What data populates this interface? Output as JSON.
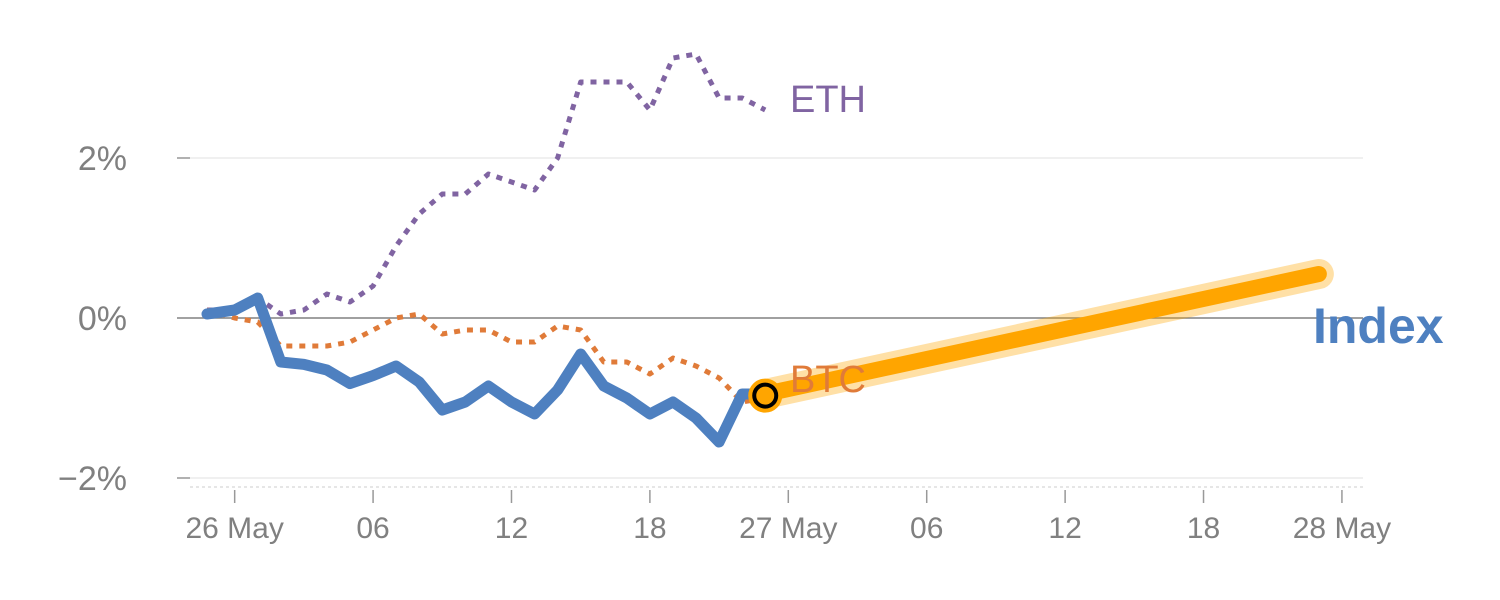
{
  "chart_data": {
    "type": "line",
    "y_unit": "%",
    "ylim": [
      -2.1,
      3.5
    ],
    "y_ticks": [
      {
        "value": -2,
        "label": "−2%"
      },
      {
        "value": 0,
        "label": "0%"
      },
      {
        "value": 2,
        "label": "2%"
      }
    ],
    "x_ticks": [
      {
        "hour": 0,
        "label": "26 May"
      },
      {
        "hour": 6,
        "label": "06"
      },
      {
        "hour": 12,
        "label": "12"
      },
      {
        "hour": 18,
        "label": "18"
      },
      {
        "hour": 24,
        "label": "27 May"
      },
      {
        "hour": 30,
        "label": "06"
      },
      {
        "hour": 36,
        "label": "12"
      },
      {
        "hour": 42,
        "label": "18"
      },
      {
        "hour": 48,
        "label": "28 May"
      }
    ],
    "xlim": [
      -2.5,
      49
    ],
    "grid": "horizontal",
    "series": [
      {
        "name": "ETH",
        "style": "dotted",
        "color": "#8064a2",
        "x": [
          -1.2,
          0,
          1,
          2,
          3,
          4,
          5,
          6,
          7,
          8,
          9,
          10,
          11,
          12,
          13,
          14,
          15,
          16,
          17,
          18,
          19,
          20,
          21,
          22,
          23
        ],
        "y": [
          0.1,
          0.1,
          0.25,
          0.05,
          0.1,
          0.3,
          0.2,
          0.4,
          0.9,
          1.3,
          1.55,
          1.55,
          1.8,
          1.7,
          1.6,
          2.0,
          2.95,
          2.95,
          2.95,
          2.6,
          3.25,
          3.3,
          2.75,
          2.75,
          2.6
        ]
      },
      {
        "name": "BTC",
        "style": "dotted",
        "color": "#e07b39",
        "x": [
          -1.2,
          0,
          1,
          2,
          3,
          4,
          5,
          6,
          7,
          8,
          9,
          10,
          11,
          12,
          13,
          14,
          15,
          16,
          17,
          18,
          19,
          20,
          21,
          22,
          23
        ],
        "y": [
          0.1,
          0.0,
          -0.05,
          -0.35,
          -0.35,
          -0.35,
          -0.3,
          -0.15,
          0.0,
          0.05,
          -0.2,
          -0.15,
          -0.15,
          -0.3,
          -0.3,
          -0.1,
          -0.15,
          -0.55,
          -0.55,
          -0.7,
          -0.5,
          -0.6,
          -0.75,
          -1.05,
          -1.0
        ]
      },
      {
        "name": "",
        "style": "solid",
        "color": "#4e80c0",
        "x": [
          -1.2,
          0,
          1,
          2,
          3,
          4,
          5,
          6,
          7,
          8,
          9,
          10,
          11,
          12,
          13,
          14,
          15,
          16,
          17,
          18,
          19,
          20,
          21,
          22,
          23
        ],
        "y": [
          0.05,
          0.1,
          0.25,
          -0.55,
          -0.58,
          -0.65,
          -0.82,
          -0.72,
          -0.6,
          -0.8,
          -1.15,
          -1.05,
          -0.85,
          -1.05,
          -1.2,
          -0.9,
          -0.45,
          -0.85,
          -1.0,
          -1.2,
          -1.05,
          -1.25,
          -1.55,
          -0.95,
          -0.95
        ]
      },
      {
        "name": "Index",
        "style": "projection",
        "color": "#ffa500",
        "x": [
          23,
          47
        ],
        "y": [
          -0.95,
          0.55
        ]
      }
    ],
    "current_point": {
      "x": 23,
      "y": -0.97
    }
  },
  "colors": {
    "grid": "#e8e8e8",
    "zero_line": "#808080",
    "axis": "#cccccc",
    "tick_text": "#808080",
    "index_label": "#4e80c0",
    "btc": "#e07b39",
    "eth": "#8064a2",
    "projection": "#ffa500"
  }
}
